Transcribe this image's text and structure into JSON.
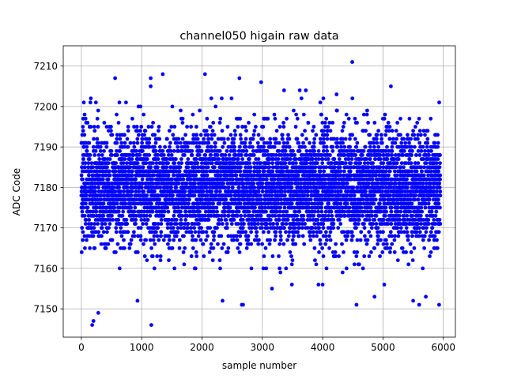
{
  "chart_data": {
    "type": "scatter",
    "title": "channel050 higain raw data",
    "xlabel": "sample number",
    "ylabel": "ADC Code",
    "xlim": [
      -300,
      6200
    ],
    "ylim": [
      7143,
      7215
    ],
    "xticks": [
      0,
      1000,
      2000,
      3000,
      4000,
      5000,
      6000
    ],
    "yticks": [
      7150,
      7160,
      7170,
      7180,
      7190,
      7200,
      7210
    ],
    "grid": true,
    "series": [
      {
        "color": "#0000ff",
        "marker": "circle",
        "x_range": [
          0,
          5950
        ],
        "n_points": 6000,
        "distribution": {
          "center": 7180,
          "spread": 7
        },
        "points": [
          {
            "x": 4490,
            "y": 7211
          },
          {
            "x": 1150,
            "y": 7207
          },
          {
            "x": 1150,
            "y": 7205
          },
          {
            "x": 1350,
            "y": 7208
          },
          {
            "x": 2050,
            "y": 7208
          },
          {
            "x": 2620,
            "y": 7207
          },
          {
            "x": 2980,
            "y": 7206
          },
          {
            "x": 560,
            "y": 7207
          },
          {
            "x": 5130,
            "y": 7205
          },
          {
            "x": 3360,
            "y": 7204
          },
          {
            "x": 3620,
            "y": 7204
          },
          {
            "x": 3720,
            "y": 7204
          },
          {
            "x": 4230,
            "y": 7203
          },
          {
            "x": 180,
            "y": 7146
          },
          {
            "x": 200,
            "y": 7147
          },
          {
            "x": 280,
            "y": 7149
          },
          {
            "x": 1160,
            "y": 7146
          },
          {
            "x": 930,
            "y": 7152
          },
          {
            "x": 2660,
            "y": 7151
          },
          {
            "x": 2680,
            "y": 7151
          },
          {
            "x": 4560,
            "y": 7151
          },
          {
            "x": 5600,
            "y": 7151
          },
          {
            "x": 5930,
            "y": 7151
          },
          {
            "x": 5500,
            "y": 7152
          },
          {
            "x": 5710,
            "y": 7153
          },
          {
            "x": 2340,
            "y": 7152
          },
          {
            "x": 4860,
            "y": 7153
          },
          {
            "x": 3160,
            "y": 7155
          },
          {
            "x": 3490,
            "y": 7156
          },
          {
            "x": 3930,
            "y": 7156
          },
          {
            "x": 4000,
            "y": 7156
          },
          {
            "x": 5020,
            "y": 7156
          },
          {
            "x": 3300,
            "y": 7159
          },
          {
            "x": 4330,
            "y": 7159
          }
        ]
      }
    ]
  }
}
